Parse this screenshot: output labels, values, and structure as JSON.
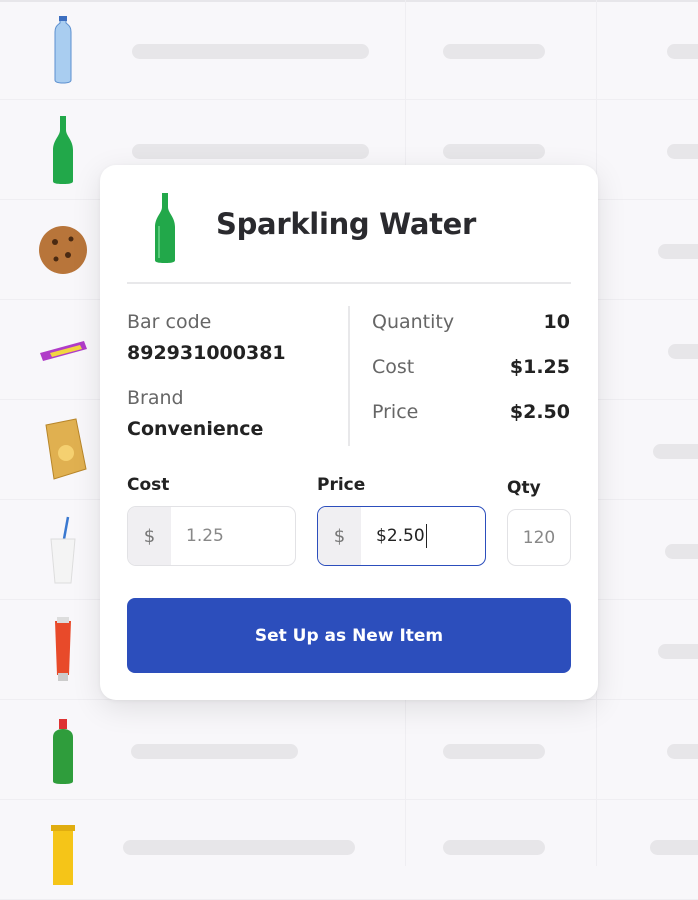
{
  "background_list": {
    "products": [
      "water-bottle",
      "green-glass-bottle",
      "chocolate-chip-cookie",
      "candy-bar",
      "potato-chips-bag",
      "paper-cup-with-straw",
      "toothpaste-tube",
      "dish-soap-bottle",
      "yellow-tube"
    ]
  },
  "card": {
    "product_icon": "green-glass-bottle",
    "title": "Sparkling Water",
    "barcode_label": "Bar code",
    "barcode_value": "892931000381",
    "brand_label": "Brand",
    "brand_value": "Convenience",
    "quantity_label": "Quantity",
    "quantity_value": "10",
    "cost_label": "Cost",
    "cost_value": "$1.25",
    "price_label": "Price",
    "price_value": "$2.50"
  },
  "form": {
    "cost_label": "Cost",
    "cost_prefix": "$",
    "cost_input": "1.25",
    "price_label": "Price",
    "price_prefix": "$",
    "price_input": "$2.50",
    "qty_label": "Qty",
    "qty_input": "120",
    "submit_label": "Set Up as New Item"
  },
  "colors": {
    "accent": "#2c4ebc",
    "background": "#f8f7fa",
    "skeleton": "#e7e6e9"
  }
}
